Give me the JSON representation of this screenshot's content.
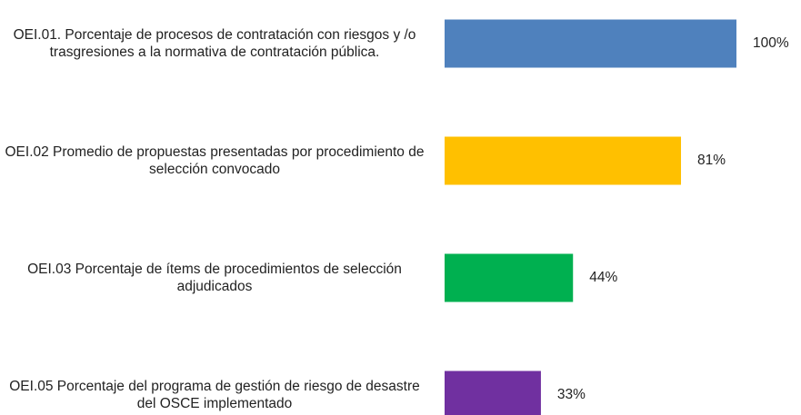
{
  "chart_data": {
    "type": "bar",
    "orientation": "horizontal",
    "categories": [
      "OEI.01. Porcentaje de procesos de contratación con riesgos y /o trasgresiones a la normativa de contratación pública.",
      "OEI.02 Promedio de propuestas presentadas por procedimiento de selección convocado",
      "OEI.03 Porcentaje de ítems de procedimientos de selección adjudicados",
      "OEI.05 Porcentaje del programa de gestión de riesgo de desastre del OSCE implementado"
    ],
    "values": [
      100,
      81,
      44,
      33
    ],
    "value_labels": [
      "100%",
      "81%",
      "44%",
      "33%"
    ],
    "colors": [
      "#4f81bd",
      "#ffc000",
      "#00b050",
      "#7030a0"
    ],
    "xlim": [
      0,
      100
    ]
  }
}
